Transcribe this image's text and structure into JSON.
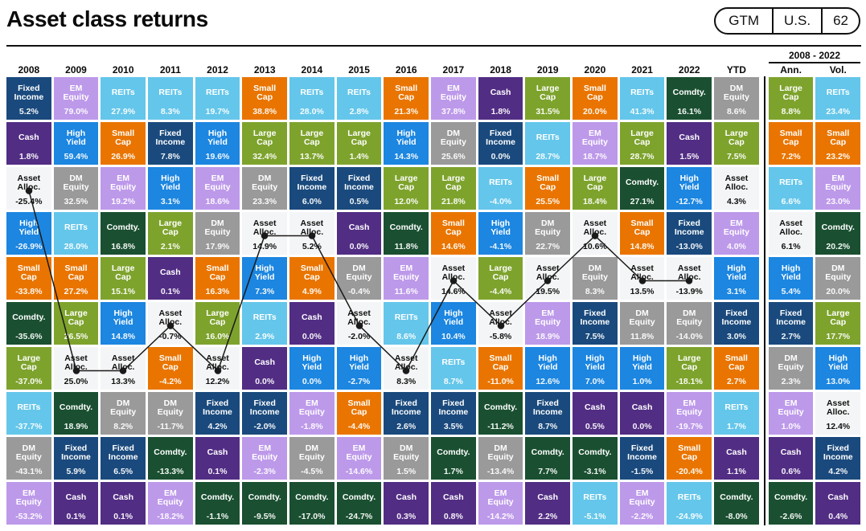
{
  "header": {
    "title": "Asset class returns",
    "badge": {
      "items": [
        "GTM",
        "U.S.",
        "62"
      ]
    }
  },
  "group_header": {
    "label": "2008 - 2022",
    "spans": [
      "Ann.",
      "Vol."
    ]
  },
  "assets": {
    "Large Cap": {
      "color": "#7ea32d",
      "text": "#ffffff"
    },
    "Small Cap": {
      "color": "#e97500",
      "text": "#ffffff"
    },
    "EM Equity": {
      "color": "#bd99ea",
      "text": "#ffffff"
    },
    "DM Equity": {
      "color": "#9a9a9a",
      "text": "#ffffff"
    },
    "Fixed Income": {
      "color": "#1a4a7d",
      "text": "#ffffff"
    },
    "High Yield": {
      "color": "#1c86e0",
      "text": "#ffffff"
    },
    "REITs": {
      "color": "#64c6ea",
      "text": "#ffffff"
    },
    "Cash": {
      "color": "#522d84",
      "text": "#ffffff"
    },
    "Comdty.": {
      "color": "#1a5031",
      "text": "#ffffff"
    },
    "Asset Alloc.": {
      "color": "#f4f5f6",
      "text": "#111111"
    }
  },
  "asset_alloc_line": {
    "color": "#1a1a1a",
    "columns": [
      "2008",
      "2009",
      "2010",
      "2011",
      "2012",
      "2013",
      "2014",
      "2015",
      "2016",
      "2017",
      "2018",
      "2019",
      "2020",
      "2021",
      "2022"
    ]
  },
  "chart_data": {
    "type": "table",
    "title": "Asset class returns",
    "description": "Ranked annual returns by asset class, 2008-2022 plus YTD, with 2008-2022 annualized return (Ann.) and volatility (Vol.)",
    "columns": [
      {
        "label": "2008",
        "cells": [
          {
            "asset": "Fixed Income",
            "value": "5.2%"
          },
          {
            "asset": "Cash",
            "value": "1.8%"
          },
          {
            "asset": "Asset Alloc.",
            "value": "-25.4%"
          },
          {
            "asset": "High Yield",
            "value": "-26.9%"
          },
          {
            "asset": "Small Cap",
            "value": "-33.8%"
          },
          {
            "asset": "Comdty.",
            "value": "-35.6%"
          },
          {
            "asset": "Large Cap",
            "value": "-37.0%"
          },
          {
            "asset": "REITs",
            "value": "-37.7%"
          },
          {
            "asset": "DM Equity",
            "value": "-43.1%"
          },
          {
            "asset": "EM Equity",
            "value": "-53.2%"
          }
        ]
      },
      {
        "label": "2009",
        "cells": [
          {
            "asset": "EM Equity",
            "value": "79.0%"
          },
          {
            "asset": "High Yield",
            "value": "59.4%"
          },
          {
            "asset": "DM Equity",
            "value": "32.5%"
          },
          {
            "asset": "REITs",
            "value": "28.0%"
          },
          {
            "asset": "Small Cap",
            "value": "27.2%"
          },
          {
            "asset": "Large Cap",
            "value": "26.5%"
          },
          {
            "asset": "Asset Alloc.",
            "value": "25.0%"
          },
          {
            "asset": "Comdty.",
            "value": "18.9%"
          },
          {
            "asset": "Fixed Income",
            "value": "5.9%"
          },
          {
            "asset": "Cash",
            "value": "0.1%"
          }
        ]
      },
      {
        "label": "2010",
        "cells": [
          {
            "asset": "REITs",
            "value": "27.9%"
          },
          {
            "asset": "Small Cap",
            "value": "26.9%"
          },
          {
            "asset": "EM Equity",
            "value": "19.2%"
          },
          {
            "asset": "Comdty.",
            "value": "16.8%"
          },
          {
            "asset": "Large Cap",
            "value": "15.1%"
          },
          {
            "asset": "High Yield",
            "value": "14.8%"
          },
          {
            "asset": "Asset Alloc.",
            "value": "13.3%"
          },
          {
            "asset": "DM Equity",
            "value": "8.2%"
          },
          {
            "asset": "Fixed Income",
            "value": "6.5%"
          },
          {
            "asset": "Cash",
            "value": "0.1%"
          }
        ]
      },
      {
        "label": "2011",
        "cells": [
          {
            "asset": "REITs",
            "value": "8.3%"
          },
          {
            "asset": "Fixed Income",
            "value": "7.8%"
          },
          {
            "asset": "High Yield",
            "value": "3.1%"
          },
          {
            "asset": "Large Cap",
            "value": "2.1%"
          },
          {
            "asset": "Cash",
            "value": "0.1%"
          },
          {
            "asset": "Asset Alloc.",
            "value": "-0.7%"
          },
          {
            "asset": "Small Cap",
            "value": "-4.2%"
          },
          {
            "asset": "DM Equity",
            "value": "-11.7%"
          },
          {
            "asset": "Comdty.",
            "value": "-13.3%"
          },
          {
            "asset": "EM Equity",
            "value": "-18.2%"
          }
        ]
      },
      {
        "label": "2012",
        "cells": [
          {
            "asset": "REITs",
            "value": "19.7%"
          },
          {
            "asset": "High Yield",
            "value": "19.6%"
          },
          {
            "asset": "EM Equity",
            "value": "18.6%"
          },
          {
            "asset": "DM Equity",
            "value": "17.9%"
          },
          {
            "asset": "Small Cap",
            "value": "16.3%"
          },
          {
            "asset": "Large Cap",
            "value": "16.0%"
          },
          {
            "asset": "Asset Alloc.",
            "value": "12.2%"
          },
          {
            "asset": "Fixed Income",
            "value": "4.2%"
          },
          {
            "asset": "Cash",
            "value": "0.1%"
          },
          {
            "asset": "Comdty.",
            "value": "-1.1%"
          }
        ]
      },
      {
        "label": "2013",
        "cells": [
          {
            "asset": "Small Cap",
            "value": "38.8%"
          },
          {
            "asset": "Large Cap",
            "value": "32.4%"
          },
          {
            "asset": "DM Equity",
            "value": "23.3%"
          },
          {
            "asset": "Asset Alloc.",
            "value": "14.9%"
          },
          {
            "asset": "High Yield",
            "value": "7.3%"
          },
          {
            "asset": "REITs",
            "value": "2.9%"
          },
          {
            "asset": "Cash",
            "value": "0.0%"
          },
          {
            "asset": "Fixed Income",
            "value": "-2.0%"
          },
          {
            "asset": "EM Equity",
            "value": "-2.3%"
          },
          {
            "asset": "Comdty.",
            "value": "-9.5%"
          }
        ]
      },
      {
        "label": "2014",
        "cells": [
          {
            "asset": "REITs",
            "value": "28.0%"
          },
          {
            "asset": "Large Cap",
            "value": "13.7%"
          },
          {
            "asset": "Fixed Income",
            "value": "6.0%"
          },
          {
            "asset": "Asset Alloc.",
            "value": "5.2%"
          },
          {
            "asset": "Small Cap",
            "value": "4.9%"
          },
          {
            "asset": "Cash",
            "value": "0.0%"
          },
          {
            "asset": "High Yield",
            "value": "0.0%"
          },
          {
            "asset": "EM Equity",
            "value": "-1.8%"
          },
          {
            "asset": "DM Equity",
            "value": "-4.5%"
          },
          {
            "asset": "Comdty.",
            "value": "-17.0%"
          }
        ]
      },
      {
        "label": "2015",
        "cells": [
          {
            "asset": "REITs",
            "value": "2.8%"
          },
          {
            "asset": "Large Cap",
            "value": "1.4%"
          },
          {
            "asset": "Fixed Income",
            "value": "0.5%"
          },
          {
            "asset": "Cash",
            "value": "0.0%"
          },
          {
            "asset": "DM Equity",
            "value": "-0.4%"
          },
          {
            "asset": "Asset Alloc.",
            "value": "-2.0%"
          },
          {
            "asset": "High Yield",
            "value": "-2.7%"
          },
          {
            "asset": "Small Cap",
            "value": "-4.4%"
          },
          {
            "asset": "EM Equity",
            "value": "-14.6%"
          },
          {
            "asset": "Comdty.",
            "value": "-24.7%"
          }
        ]
      },
      {
        "label": "2016",
        "cells": [
          {
            "asset": "Small Cap",
            "value": "21.3%"
          },
          {
            "asset": "High Yield",
            "value": "14.3%"
          },
          {
            "asset": "Large Cap",
            "value": "12.0%"
          },
          {
            "asset": "Comdty.",
            "value": "11.8%"
          },
          {
            "asset": "EM Equity",
            "value": "11.6%"
          },
          {
            "asset": "REITs",
            "value": "8.6%"
          },
          {
            "asset": "Asset Alloc.",
            "value": "8.3%"
          },
          {
            "asset": "Fixed Income",
            "value": "2.6%"
          },
          {
            "asset": "DM Equity",
            "value": "1.5%"
          },
          {
            "asset": "Cash",
            "value": "0.3%"
          }
        ]
      },
      {
        "label": "2017",
        "cells": [
          {
            "asset": "EM Equity",
            "value": "37.8%"
          },
          {
            "asset": "DM Equity",
            "value": "25.6%"
          },
          {
            "asset": "Large Cap",
            "value": "21.8%"
          },
          {
            "asset": "Small Cap",
            "value": "14.6%"
          },
          {
            "asset": "Asset Alloc.",
            "value": "14.6%"
          },
          {
            "asset": "High Yield",
            "value": "10.4%"
          },
          {
            "asset": "REITs",
            "value": "8.7%"
          },
          {
            "asset": "Fixed Income",
            "value": "3.5%"
          },
          {
            "asset": "Comdty.",
            "value": "1.7%"
          },
          {
            "asset": "Cash",
            "value": "0.8%"
          }
        ]
      },
      {
        "label": "2018",
        "cells": [
          {
            "asset": "Cash",
            "value": "1.8%"
          },
          {
            "asset": "Fixed Income",
            "value": "0.0%"
          },
          {
            "asset": "REITs",
            "value": "-4.0%"
          },
          {
            "asset": "High Yield",
            "value": "-4.1%"
          },
          {
            "asset": "Large Cap",
            "value": "-4.4%"
          },
          {
            "asset": "Asset Alloc.",
            "value": "-5.8%"
          },
          {
            "asset": "Small Cap",
            "value": "-11.0%"
          },
          {
            "asset": "Comdty.",
            "value": "-11.2%"
          },
          {
            "asset": "DM Equity",
            "value": "-13.4%"
          },
          {
            "asset": "EM Equity",
            "value": "-14.2%"
          }
        ]
      },
      {
        "label": "2019",
        "cells": [
          {
            "asset": "Large Cap",
            "value": "31.5%"
          },
          {
            "asset": "REITs",
            "value": "28.7%"
          },
          {
            "asset": "Small Cap",
            "value": "25.5%"
          },
          {
            "asset": "DM Equity",
            "value": "22.7%"
          },
          {
            "asset": "Asset Alloc.",
            "value": "19.5%"
          },
          {
            "asset": "EM Equity",
            "value": "18.9%"
          },
          {
            "asset": "High Yield",
            "value": "12.6%"
          },
          {
            "asset": "Fixed Income",
            "value": "8.7%"
          },
          {
            "asset": "Comdty.",
            "value": "7.7%"
          },
          {
            "asset": "Cash",
            "value": "2.2%"
          }
        ]
      },
      {
        "label": "2020",
        "cells": [
          {
            "asset": "Small Cap",
            "value": "20.0%"
          },
          {
            "asset": "EM Equity",
            "value": "18.7%"
          },
          {
            "asset": "Large Cap",
            "value": "18.4%"
          },
          {
            "asset": "Asset Alloc.",
            "value": "10.6%"
          },
          {
            "asset": "DM Equity",
            "value": "8.3%"
          },
          {
            "asset": "Fixed Income",
            "value": "7.5%"
          },
          {
            "asset": "High Yield",
            "value": "7.0%"
          },
          {
            "asset": "Cash",
            "value": "0.5%"
          },
          {
            "asset": "Comdty.",
            "value": "-3.1%"
          },
          {
            "asset": "REITs",
            "value": "-5.1%"
          }
        ]
      },
      {
        "label": "2021",
        "cells": [
          {
            "asset": "REITs",
            "value": "41.3%"
          },
          {
            "asset": "Large Cap",
            "value": "28.7%"
          },
          {
            "asset": "Comdty.",
            "value": "27.1%"
          },
          {
            "asset": "Small Cap",
            "value": "14.8%"
          },
          {
            "asset": "Asset Alloc.",
            "value": "13.5%"
          },
          {
            "asset": "DM Equity",
            "value": "11.8%"
          },
          {
            "asset": "High Yield",
            "value": "1.0%"
          },
          {
            "asset": "Cash",
            "value": "0.0%"
          },
          {
            "asset": "Fixed Income",
            "value": "-1.5%"
          },
          {
            "asset": "EM Equity",
            "value": "-2.2%"
          }
        ]
      },
      {
        "label": "2022",
        "cells": [
          {
            "asset": "Comdty.",
            "value": "16.1%"
          },
          {
            "asset": "Cash",
            "value": "1.5%"
          },
          {
            "asset": "High Yield",
            "value": "-12.7%"
          },
          {
            "asset": "Fixed Income",
            "value": "-13.0%"
          },
          {
            "asset": "Asset Alloc.",
            "value": "-13.9%"
          },
          {
            "asset": "DM Equity",
            "value": "-14.0%"
          },
          {
            "asset": "Large Cap",
            "value": "-18.1%"
          },
          {
            "asset": "EM Equity",
            "value": "-19.7%"
          },
          {
            "asset": "Small Cap",
            "value": "-20.4%"
          },
          {
            "asset": "REITs",
            "value": "-24.9%"
          }
        ]
      },
      {
        "label": "YTD",
        "cells": [
          {
            "asset": "DM Equity",
            "value": "8.6%"
          },
          {
            "asset": "Large Cap",
            "value": "7.5%"
          },
          {
            "asset": "Asset Alloc.",
            "value": "4.3%"
          },
          {
            "asset": "EM Equity",
            "value": "4.0%"
          },
          {
            "asset": "High Yield",
            "value": "3.1%"
          },
          {
            "asset": "Fixed Income",
            "value": "3.0%"
          },
          {
            "asset": "Small Cap",
            "value": "2.7%"
          },
          {
            "asset": "REITs",
            "value": "1.7%"
          },
          {
            "asset": "Cash",
            "value": "1.1%"
          },
          {
            "asset": "Comdty.",
            "value": "-8.0%"
          }
        ]
      },
      {
        "label": "Ann.",
        "cells": [
          {
            "asset": "Large Cap",
            "value": "8.8%"
          },
          {
            "asset": "Small Cap",
            "value": "7.2%"
          },
          {
            "asset": "REITs",
            "value": "6.6%"
          },
          {
            "asset": "Asset Alloc.",
            "value": "6.1%"
          },
          {
            "asset": "High Yield",
            "value": "5.4%"
          },
          {
            "asset": "Fixed Income",
            "value": "2.7%"
          },
          {
            "asset": "DM Equity",
            "value": "2.3%"
          },
          {
            "asset": "EM Equity",
            "value": "1.0%"
          },
          {
            "asset": "Cash",
            "value": "0.6%"
          },
          {
            "asset": "Comdty.",
            "value": "-2.6%"
          }
        ]
      },
      {
        "label": "Vol.",
        "cells": [
          {
            "asset": "REITs",
            "value": "23.4%"
          },
          {
            "asset": "Small Cap",
            "value": "23.2%"
          },
          {
            "asset": "EM Equity",
            "value": "23.0%"
          },
          {
            "asset": "Comdty.",
            "value": "20.2%"
          },
          {
            "asset": "DM Equity",
            "value": "20.0%"
          },
          {
            "asset": "Large Cap",
            "value": "17.7%"
          },
          {
            "asset": "High Yield",
            "value": "13.0%"
          },
          {
            "asset": "Asset Alloc.",
            "value": "12.4%"
          },
          {
            "asset": "Fixed Income",
            "value": "4.2%"
          },
          {
            "asset": "Cash",
            "value": "0.4%"
          }
        ]
      }
    ]
  }
}
